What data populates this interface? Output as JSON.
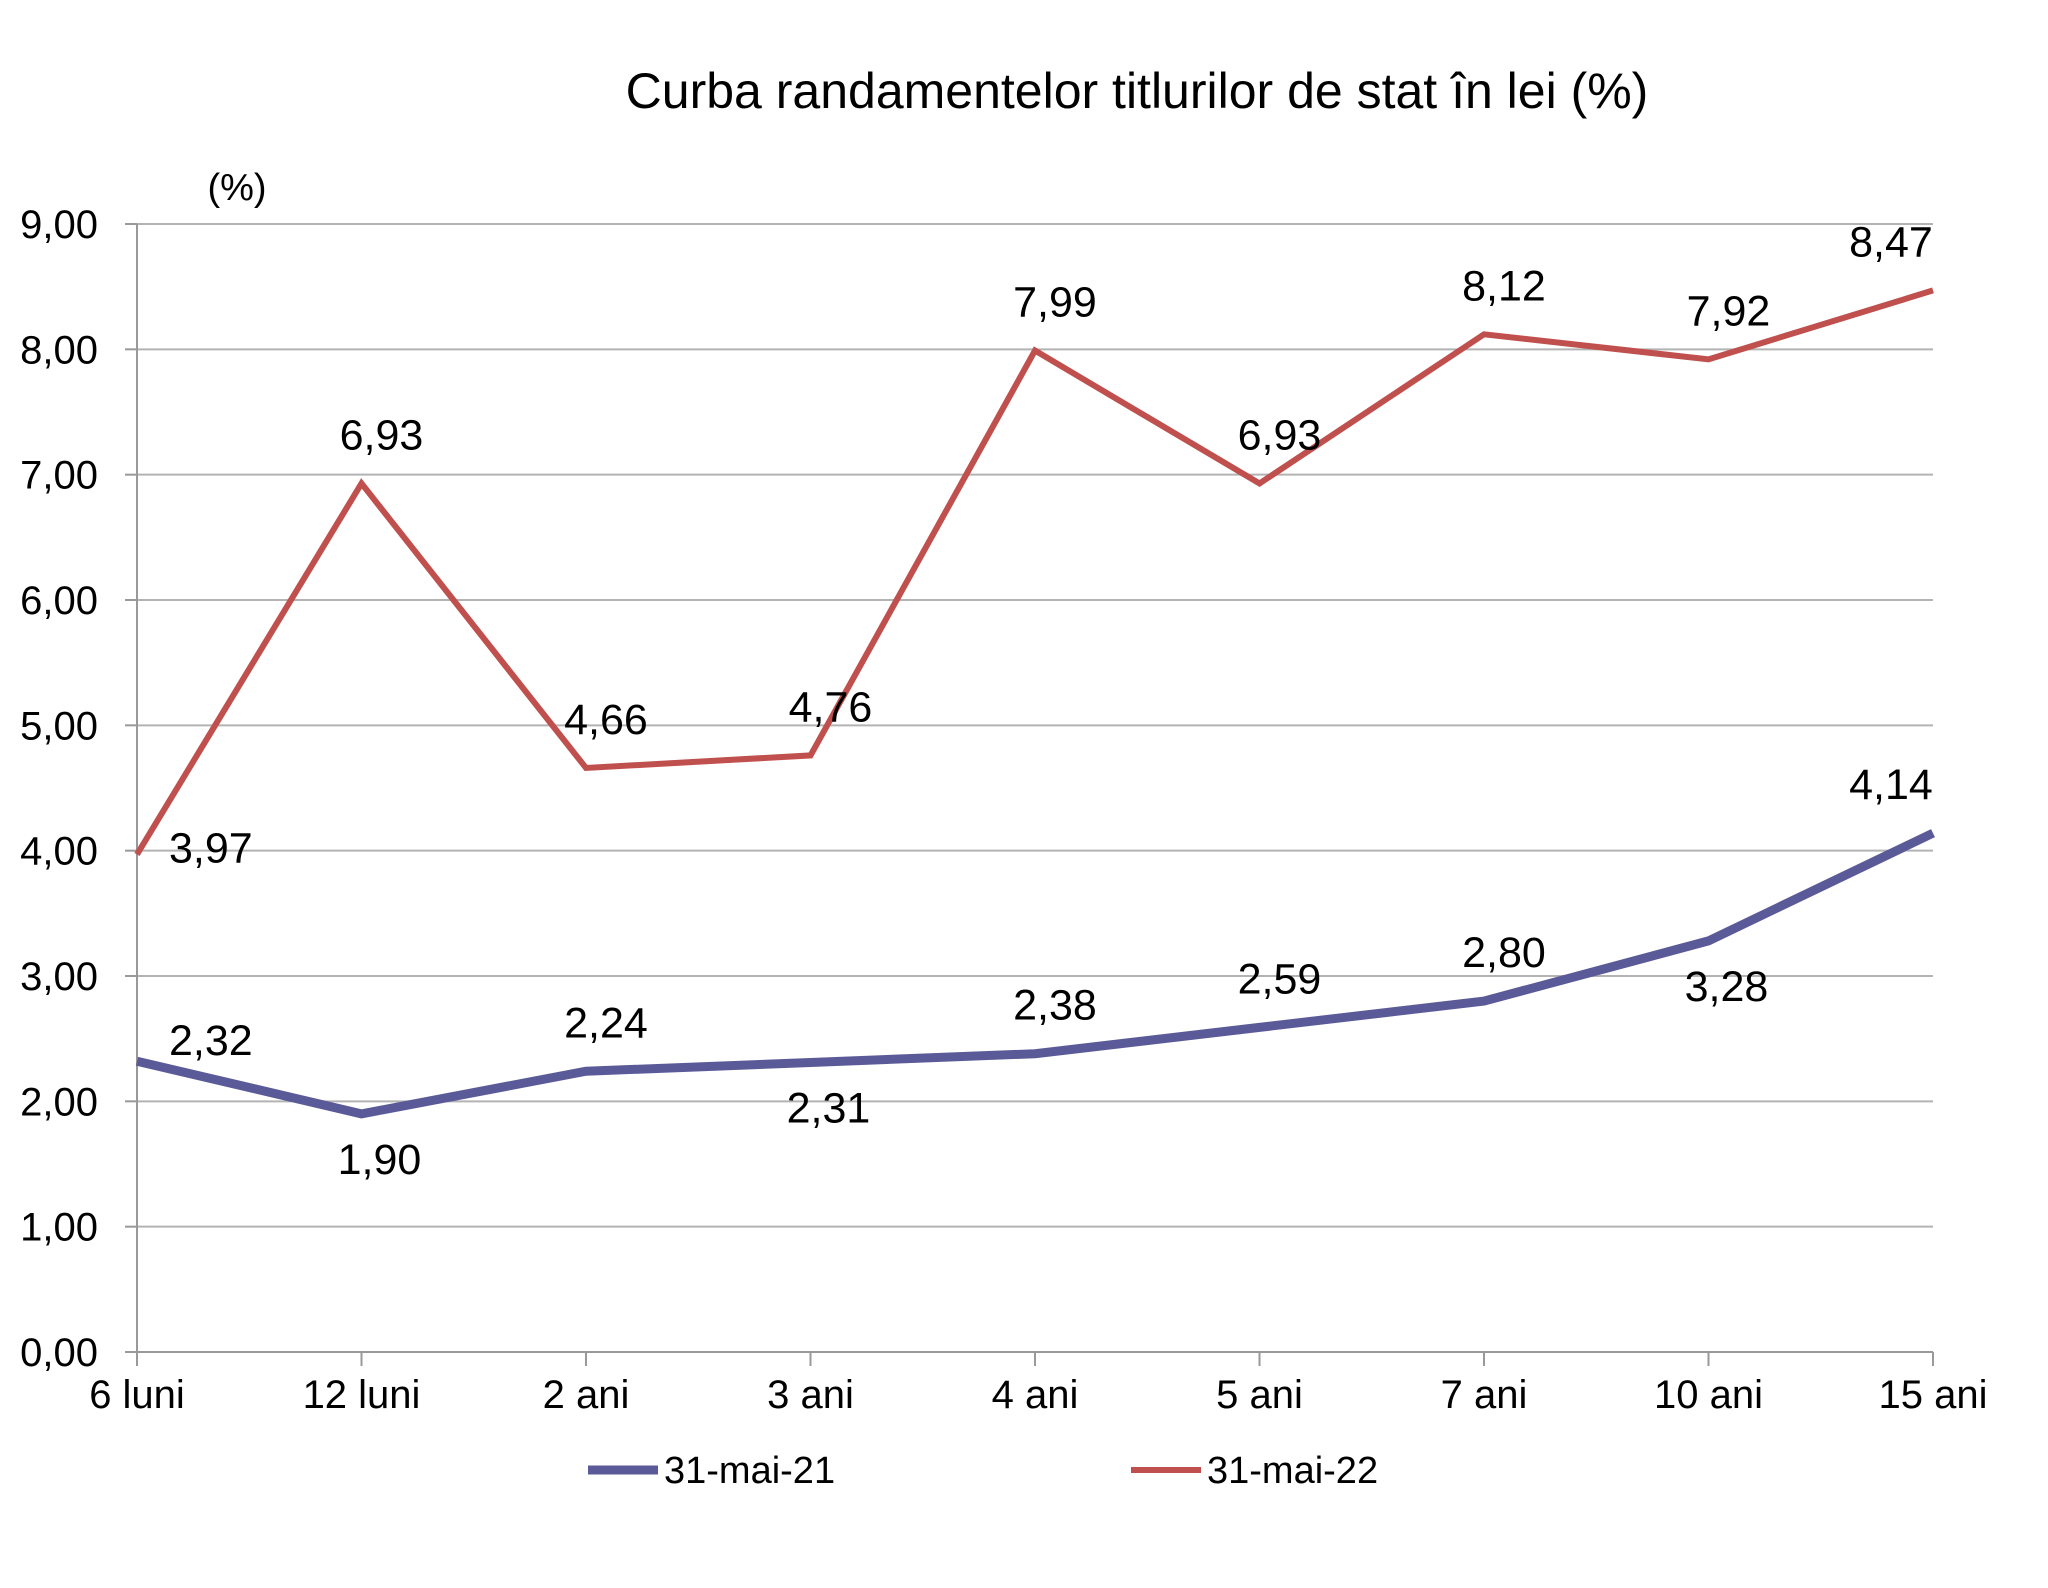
{
  "chart_data": {
    "type": "line",
    "title": "Curba randamentelor titlurilor de stat în lei (%)",
    "ylabel": "(%)",
    "xlabel": "",
    "categories": [
      "6 luni",
      "12 luni",
      "2 ani",
      "3 ani",
      "4 ani",
      "5 ani",
      "7 ani",
      "10 ani",
      "15 ani"
    ],
    "ylim": [
      0,
      9
    ],
    "yticks": [
      "0,00",
      "1,00",
      "2,00",
      "3,00",
      "4,00",
      "5,00",
      "6,00",
      "7,00",
      "8,00",
      "9,00"
    ],
    "grid": true,
    "legend_position": "bottom",
    "series": [
      {
        "name": "31-mai-21",
        "color": "#5b5a98",
        "values": [
          2.32,
          1.9,
          2.24,
          2.31,
          2.38,
          2.59,
          2.8,
          3.28,
          4.14
        ],
        "labels": [
          "2,32",
          "1,90",
          "2,24",
          "2,31",
          "2,38",
          "2,59",
          "2,80",
          "3,28",
          "4,14"
        ]
      },
      {
        "name": "31-mai-22",
        "color": "#c0504d",
        "values": [
          3.97,
          6.93,
          4.66,
          4.76,
          7.99,
          6.93,
          8.12,
          7.92,
          8.47
        ],
        "labels": [
          "3,97",
          "6,93",
          "4,66",
          "4,76",
          "7,99",
          "6,93",
          "8,12",
          "7,92",
          "8,47"
        ]
      }
    ]
  }
}
